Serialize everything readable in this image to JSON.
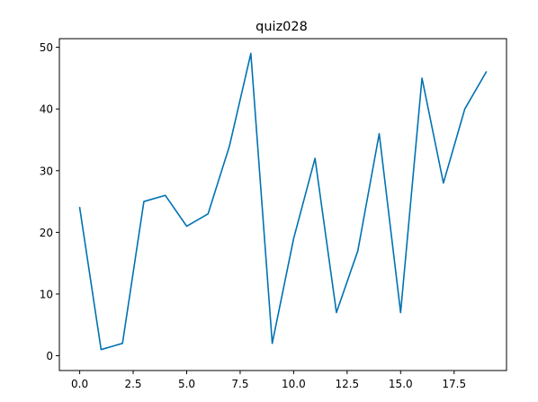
{
  "chart_data": {
    "type": "line",
    "title": "quiz028",
    "xlabel": "",
    "ylabel": "",
    "x": [
      0,
      1,
      2,
      3,
      4,
      5,
      6,
      7,
      8,
      9,
      10,
      11,
      12,
      13,
      14,
      15,
      16,
      17,
      18,
      19
    ],
    "series": [
      {
        "values": [
          24,
          1,
          2,
          25,
          26,
          21,
          23,
          34,
          49,
          2,
          19,
          32,
          7,
          17,
          36,
          7,
          45,
          28,
          40,
          46
        ],
        "color": "#0072b2"
      }
    ],
    "xlim": [
      -0.95,
      19.95
    ],
    "ylim": [
      -2.4,
      51.4
    ],
    "xticks": [
      0,
      2.5,
      5,
      7.5,
      10,
      12.5,
      15,
      17.5
    ],
    "xtick_labels": [
      "0.0",
      "2.5",
      "5.0",
      "7.5",
      "10.0",
      "12.5",
      "15.0",
      "17.5"
    ],
    "yticks": [
      0,
      10,
      20,
      30,
      40,
      50
    ],
    "ytick_labels": [
      "0",
      "10",
      "20",
      "30",
      "40",
      "50"
    ],
    "grid": false,
    "legend": "none"
  }
}
